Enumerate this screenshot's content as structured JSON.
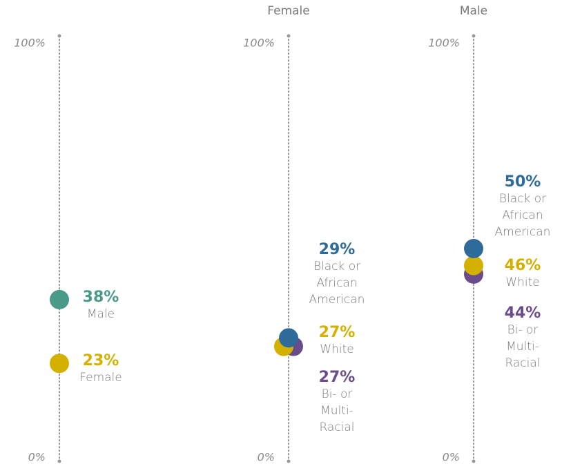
{
  "chart_data": [
    {
      "type": "dot",
      "categories": [
        "Male",
        "Female"
      ],
      "values": [
        38,
        23
      ],
      "value_labels": [
        "38%",
        "23%"
      ],
      "colors": [
        "#4a9a8a",
        "#d4b000"
      ],
      "ylim": [
        0,
        100
      ],
      "yticks": [
        {
          "value": 0,
          "label": "0%"
        },
        {
          "value": 100,
          "label": "100%"
        }
      ]
    },
    {
      "type": "dot",
      "title": "Female",
      "categories": [
        "Black or African American",
        "White",
        "Bi- or Multi-Racial"
      ],
      "values": [
        29,
        27,
        27
      ],
      "value_labels": [
        "29%",
        "27%",
        "27%"
      ],
      "colors": [
        "#2f6b9a",
        "#d4b000",
        "#6b4c8a"
      ],
      "ylim": [
        0,
        100
      ],
      "yticks": [
        {
          "value": 0,
          "label": "0%"
        },
        {
          "value": 100,
          "label": "100%"
        }
      ]
    },
    {
      "type": "dot",
      "title": "Male",
      "categories": [
        "Black or African American",
        "White",
        "Bi- or Multi-Racial"
      ],
      "values": [
        50,
        46,
        44
      ],
      "value_labels": [
        "50%",
        "46%",
        "44%"
      ],
      "colors": [
        "#2f6b9a",
        "#d4b000",
        "#6b4c8a"
      ],
      "ylim": [
        0,
        100
      ],
      "yticks": [
        {
          "value": 0,
          "label": "0%"
        },
        {
          "value": 100,
          "label": "100%"
        }
      ]
    }
  ]
}
